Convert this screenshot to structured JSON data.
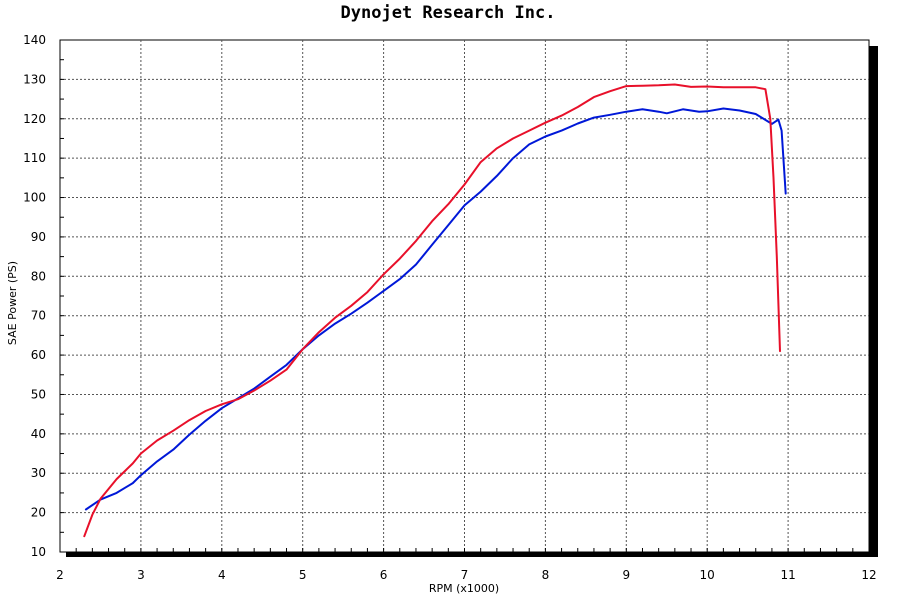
{
  "chart_data": {
    "type": "line",
    "title": "Dynojet  Research  Inc.",
    "xlabel": "RPM (x1000)",
    "ylabel": "SAE Power (PS)",
    "xlim": [
      2,
      12
    ],
    "ylim": [
      10,
      140
    ],
    "x_ticks": [
      2,
      3,
      4,
      5,
      6,
      7,
      8,
      9,
      10,
      11,
      12
    ],
    "y_ticks": [
      10,
      20,
      30,
      40,
      50,
      60,
      70,
      80,
      90,
      100,
      110,
      120,
      130,
      140
    ],
    "grid": true,
    "series": [
      {
        "color": "#0018d8",
        "points": [
          [
            2.32,
            20.8
          ],
          [
            2.5,
            23.3
          ],
          [
            2.7,
            25.0
          ],
          [
            2.9,
            27.5
          ],
          [
            3.0,
            29.5
          ],
          [
            3.2,
            33.0
          ],
          [
            3.4,
            36.0
          ],
          [
            3.6,
            39.8
          ],
          [
            3.8,
            43.3
          ],
          [
            4.0,
            46.5
          ],
          [
            4.2,
            49.0
          ],
          [
            4.4,
            51.5
          ],
          [
            4.6,
            54.5
          ],
          [
            4.8,
            57.5
          ],
          [
            5.0,
            61.5
          ],
          [
            5.2,
            65.0
          ],
          [
            5.4,
            68.0
          ],
          [
            5.6,
            70.5
          ],
          [
            5.8,
            73.3
          ],
          [
            6.0,
            76.3
          ],
          [
            6.2,
            79.3
          ],
          [
            6.4,
            83.0
          ],
          [
            6.6,
            88.0
          ],
          [
            6.8,
            93.0
          ],
          [
            7.0,
            98.0
          ],
          [
            7.2,
            101.5
          ],
          [
            7.4,
            105.5
          ],
          [
            7.6,
            110.0
          ],
          [
            7.8,
            113.5
          ],
          [
            8.0,
            115.5
          ],
          [
            8.2,
            117.0
          ],
          [
            8.4,
            118.8
          ],
          [
            8.6,
            120.3
          ],
          [
            8.8,
            121.0
          ],
          [
            9.0,
            121.8
          ],
          [
            9.2,
            122.4
          ],
          [
            9.4,
            121.8
          ],
          [
            9.5,
            121.4
          ],
          [
            9.7,
            122.4
          ],
          [
            9.9,
            121.8
          ],
          [
            10.0,
            121.9
          ],
          [
            10.2,
            122.6
          ],
          [
            10.4,
            122.1
          ],
          [
            10.6,
            121.2
          ],
          [
            10.8,
            118.7
          ],
          [
            10.88,
            119.8
          ],
          [
            10.92,
            117.0
          ],
          [
            10.97,
            101.0
          ]
        ]
      },
      {
        "color": "#e8102a",
        "points": [
          [
            2.3,
            14.0
          ],
          [
            2.4,
            19.5
          ],
          [
            2.5,
            23.5
          ],
          [
            2.7,
            28.5
          ],
          [
            2.9,
            32.5
          ],
          [
            3.0,
            35.0
          ],
          [
            3.2,
            38.3
          ],
          [
            3.4,
            40.8
          ],
          [
            3.6,
            43.5
          ],
          [
            3.8,
            45.8
          ],
          [
            4.0,
            47.5
          ],
          [
            4.2,
            48.8
          ],
          [
            4.4,
            51.0
          ],
          [
            4.6,
            53.5
          ],
          [
            4.8,
            56.3
          ],
          [
            5.0,
            61.5
          ],
          [
            5.2,
            65.8
          ],
          [
            5.4,
            69.5
          ],
          [
            5.6,
            72.5
          ],
          [
            5.8,
            76.0
          ],
          [
            6.0,
            80.5
          ],
          [
            6.2,
            84.5
          ],
          [
            6.4,
            89.0
          ],
          [
            6.6,
            94.0
          ],
          [
            6.8,
            98.3
          ],
          [
            7.0,
            103.3
          ],
          [
            7.2,
            109.0
          ],
          [
            7.4,
            112.5
          ],
          [
            7.6,
            115.0
          ],
          [
            7.8,
            117.0
          ],
          [
            8.0,
            119.0
          ],
          [
            8.2,
            120.8
          ],
          [
            8.4,
            123.0
          ],
          [
            8.6,
            125.5
          ],
          [
            8.8,
            127.0
          ],
          [
            9.0,
            128.3
          ],
          [
            9.2,
            128.4
          ],
          [
            9.4,
            128.5
          ],
          [
            9.6,
            128.7
          ],
          [
            9.8,
            128.1
          ],
          [
            10.0,
            128.2
          ],
          [
            10.2,
            128.0
          ],
          [
            10.4,
            128.0
          ],
          [
            10.6,
            128.0
          ],
          [
            10.72,
            127.5
          ],
          [
            10.78,
            120.0
          ],
          [
            10.82,
            105.0
          ],
          [
            10.86,
            85.0
          ],
          [
            10.9,
            61.0
          ]
        ]
      }
    ]
  }
}
